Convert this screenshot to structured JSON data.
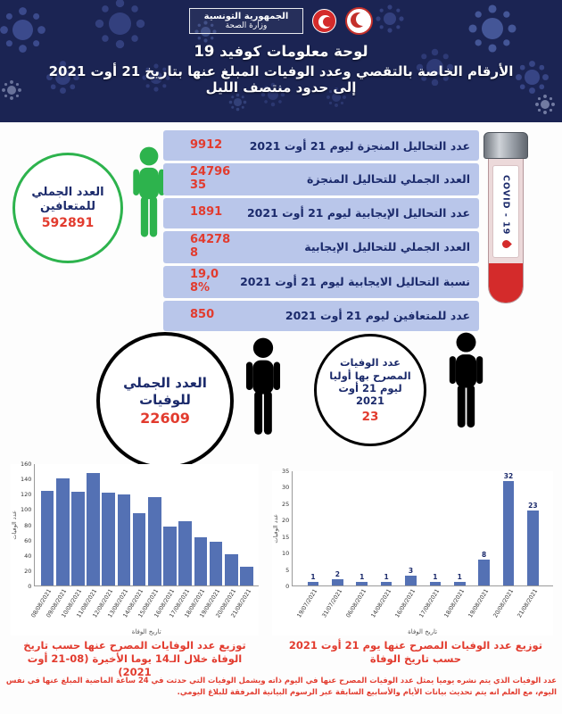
{
  "header": {
    "ministry_line1": "الجمهورية التونسية",
    "ministry_line2": "وزارة الصحة",
    "title_line1": "لوحة معلومات كوفيد 19",
    "title_line2": "الأرقام الخاصة بالتقصي وعدد الوفيات المبلغ عنها بتاريخ 21 أوت 2021",
    "title_line3": "إلى حدود منتصف الليل"
  },
  "recovered_circle": {
    "label": "العدد الجملي للمتعافين",
    "value": "592891"
  },
  "stats_rows": [
    {
      "label": "عدد التحاليل المنجزة ليوم 21 أوت 2021",
      "value": "9912"
    },
    {
      "label": "العدد الجملي للتحاليل المنجزة",
      "value": "2479635"
    },
    {
      "label": "عدد التحاليل الإيجابية ليوم 21 أوت 2021",
      "value": "1891"
    },
    {
      "label": "العدد الجملي للتحاليل الإيجابية",
      "value": "642788"
    },
    {
      "label": "نسبة التحاليل الايجابية ليوم 21 أوت 2021",
      "value": "19,08%"
    },
    {
      "label": "عدد للمتعافين ليوم 21 أوت 2021",
      "value": "850"
    }
  ],
  "tube": {
    "label": "COVID - 19"
  },
  "deaths_total_circle": {
    "label": "العدد الجملي للوفيات",
    "value": "22609"
  },
  "deaths_daily_circle": {
    "label": "عدد الوفيات المصرح بها أوليا ليوم 21 أوت 2021",
    "value": "23"
  },
  "chart_data": [
    {
      "type": "bar",
      "title": "توزيع عدد الوفايات المصرح عنها حسب تاريخ الوفاة خلال الـ14 يوما الأخيرة (08-21 أوت 2021)",
      "categories": [
        "08/08/2021",
        "09/08/2021",
        "10/08/2021",
        "11/08/2021",
        "12/08/2021",
        "13/08/2021",
        "14/08/2021",
        "15/08/2021",
        "16/08/2021",
        "17/08/2021",
        "18/08/2021",
        "19/08/2021",
        "20/08/2021",
        "21/08/2021"
      ],
      "values": [
        125,
        141,
        123,
        148,
        122,
        120,
        95,
        117,
        78,
        85,
        64,
        58,
        41,
        25
      ],
      "xlabel": "تاريخ الوفاة",
      "ylabel": "عدد الوفيات",
      "ylim": [
        0,
        160
      ],
      "yticks": [
        0,
        20,
        40,
        60,
        80,
        100,
        120,
        140,
        160
      ],
      "show_labels": false,
      "bar_color": "#5471b4",
      "legend": "none",
      "grid": false
    },
    {
      "type": "bar",
      "title": "توزيع عدد الوفيات المصرح عنها يوم 21 أوت 2021 حسب تاريخ الوفاة",
      "categories": [
        "19/07/2021",
        "31/07/2021",
        "06/08/2021",
        "14/08/2021",
        "16/08/2021",
        "17/08/2021",
        "18/08/2021",
        "19/08/2021",
        "20/08/2021",
        "21/08/2021"
      ],
      "values": [
        1,
        2,
        1,
        1,
        3,
        1,
        1,
        8,
        32,
        23
      ],
      "xlabel": "تاريخ الوفاة",
      "ylabel": "عدد الوفيات",
      "ylim": [
        0,
        35
      ],
      "yticks": [
        0,
        5,
        10,
        15,
        20,
        25,
        30,
        35
      ],
      "show_labels": true,
      "bar_color": "#5471b4",
      "legend": "none",
      "grid": false
    }
  ],
  "footer": {
    "note": "عدد الوفيات الذي يتم نشره يوميا يمثل عدد الوفيات المصرح عنها في اليوم ذاته ويشمل الوفيات التي حدثت في 24 ساعة الماضية المبلغ عنها في نفس اليوم، مع العلم انه يتم تحديث بيانات الأيام والأسابيع السابقة عبر الرسوم البيانية المرفقة للبلاغ اليومي."
  },
  "colors": {
    "header_bg": "#1b2453",
    "row_bg": "#b9c6ea",
    "label_navy": "#1b2a6b",
    "value_red": "#e23b2e",
    "recovered_green": "#2db34d",
    "bar_blue": "#5471b4"
  }
}
